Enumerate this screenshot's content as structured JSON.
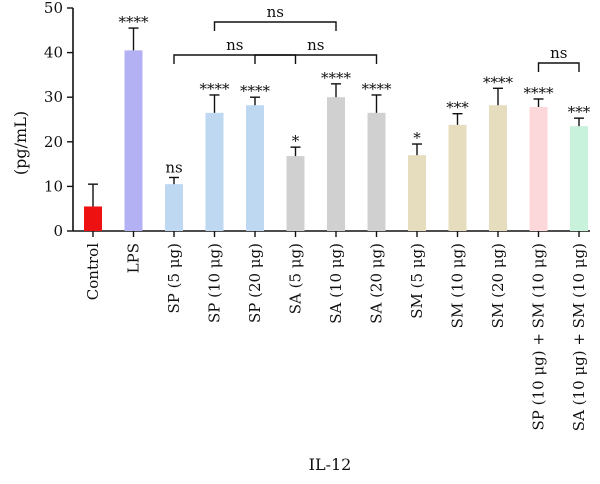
{
  "chart_data": {
    "type": "bar",
    "xlabel": "IL-12",
    "ylabel": "(pg/mL)",
    "ylim": [
      0,
      50
    ],
    "yticks": [
      0,
      10,
      20,
      30,
      40,
      50
    ],
    "grid": false,
    "categories": [
      "Control",
      "LPS",
      "SP (5 μg)",
      "SP (10 μg)",
      "SP (20 μg)",
      "SA (5 μg)",
      "SA (10 μg)",
      "SA (20 μg)",
      "SM (5 μg)",
      "SM (10 μg)",
      "SM (20 μg)",
      "SP (10 μg) + SM (10 μg)",
      "SA (10 μg) + SM (10 μg)"
    ],
    "values": [
      5.5,
      40.5,
      10.5,
      26.5,
      28.2,
      16.8,
      30.0,
      26.5,
      17.0,
      23.8,
      28.2,
      27.8,
      23.5
    ],
    "errors": [
      5.0,
      5.0,
      1.5,
      4.0,
      1.8,
      2.0,
      3.0,
      4.0,
      2.5,
      2.5,
      3.8,
      1.8,
      1.8
    ],
    "colors": [
      "#ee1111",
      "#b4b0f4",
      "#bed8f2",
      "#bed8f2",
      "#bed8f2",
      "#d0d0d0",
      "#d0d0d0",
      "#d0d0d0",
      "#e6dcbe",
      "#e6dcbe",
      "#e6dcbe",
      "#fcd8da",
      "#c9f2dc"
    ],
    "significance": [
      "",
      "****",
      "ns",
      "****",
      "****",
      "*",
      "****",
      "****",
      "*",
      "***",
      "****",
      "****",
      "***"
    ],
    "brackets": [
      {
        "from": 3,
        "to": 6,
        "label": "ns"
      },
      {
        "from": 2,
        "to": 5,
        "label": "ns"
      },
      {
        "from": 4,
        "to": 7,
        "label": "ns"
      },
      {
        "from": 11,
        "to": 12,
        "label": "ns"
      }
    ]
  }
}
